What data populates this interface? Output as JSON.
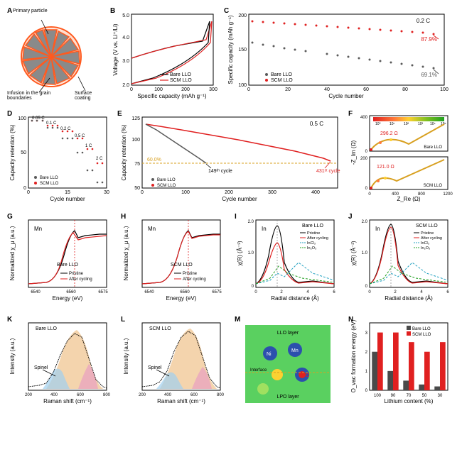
{
  "panels": {
    "A": {
      "label": "A",
      "annotations": [
        "Primary particle",
        "Infusion in the grain boundaries",
        "Surface coating"
      ],
      "colors": {
        "particle": "#8a8a8a",
        "outline": "#ff5a1f",
        "coating": "#ff7a3a"
      }
    },
    "B": {
      "label": "B",
      "type": "line",
      "xlabel": "Specific capacity (mAh g⁻¹)",
      "ylabel": "Voltage (V vs. Li⁺/Li)",
      "xlim": [
        0,
        300
      ],
      "ylim": [
        2.0,
        5.0
      ],
      "xtick_step": 50,
      "ytick_step": 0.5,
      "series": [
        {
          "name": "Bare LLO",
          "color": "#000000",
          "line_width": 1.2
        },
        {
          "name": "SCM LLO",
          "color": "#e02020",
          "line_width": 1.2
        }
      ],
      "background": "#ffffff"
    },
    "C": {
      "label": "C",
      "type": "scatter",
      "xlabel": "Cycle number",
      "ylabel": "Specific capacity (mAh g⁻¹)",
      "xlim": [
        0,
        100
      ],
      "ylim": [
        100,
        200
      ],
      "xtick_step": 20,
      "ytick_step": 25,
      "annotation_rate": "0.2 C",
      "series": [
        {
          "name": "Bare LLO",
          "color": "#5a5a5a",
          "end_label": "69.1%",
          "label_color": "#5a5a5a"
        },
        {
          "name": "SCM LLO",
          "color": "#e02020",
          "end_label": "87.9%",
          "label_color": "#e02020"
        }
      ]
    },
    "D": {
      "label": "D",
      "type": "scatter",
      "xlabel": "Cycle number",
      "ylabel": "Capacity retention (%)",
      "xlim": [
        0,
        30
      ],
      "ylim": [
        0,
        110
      ],
      "rate_labels": [
        "0.05 C",
        "0.1 C",
        "0.2 C",
        "0.5 C",
        "1 C",
        "2 C"
      ],
      "series": [
        {
          "name": "Bare LLO",
          "color": "#5a5a5a"
        },
        {
          "name": "SCM LLO",
          "color": "#e02020"
        }
      ]
    },
    "E": {
      "label": "E",
      "type": "scatter",
      "xlabel": "Cycle number",
      "ylabel": "Capacity retention (%)",
      "xlim": [
        0,
        450
      ],
      "ylim": [
        50,
        125
      ],
      "annotation_rate": "0.5 C",
      "series": [
        {
          "name": "Bare LLO",
          "color": "#5a5a5a",
          "end_cycle": "149ᵗʰ cycle"
        },
        {
          "name": "SCM LLO",
          "color": "#e02020",
          "end_cycle": "431ˢᵗ cycle"
        }
      ],
      "threshold": "60.0%",
      "threshold_color": "#d8a020"
    },
    "F": {
      "label": "F",
      "type": "nyquist",
      "xlabel": "Z_Re (Ω)",
      "ylabel": "-Z_Im (Ω)",
      "xlim": [
        0,
        1200
      ],
      "ylim": [
        0,
        400
      ],
      "subpanels": [
        {
          "name": "Bare LLO",
          "value": "296.2 Ω",
          "value_color": "#e02020"
        },
        {
          "name": "SCM LLO",
          "value": "121.0 Ω",
          "value_color": "#e02020"
        }
      ],
      "gradient": [
        "#e02020",
        "#ff7a3a",
        "#ffd030",
        "#80c020",
        "#20a020"
      ],
      "gradient_labels": [
        "10⁰",
        "10¹",
        "10²",
        "10³",
        "10⁴",
        "10⁵"
      ]
    },
    "G": {
      "label": "G",
      "type": "line",
      "element": "Mn",
      "sample": "Bare LLO",
      "xlabel": "Energy (eV)",
      "ylabel": "Normalized χ_μ (a.u.)",
      "xlim": [
        6535,
        6575
      ],
      "series": [
        {
          "name": "Pristine",
          "color": "#000000"
        },
        {
          "name": "After cycling",
          "color": "#e02020"
        }
      ]
    },
    "H": {
      "label": "H",
      "type": "line",
      "element": "Mn",
      "sample": "SCM LLO",
      "xlabel": "Energy (eV)",
      "ylabel": "Normalized χ_μ (a.u.)",
      "xlim": [
        6535,
        6575
      ],
      "series": [
        {
          "name": "Pristine",
          "color": "#000000"
        },
        {
          "name": "After cycling",
          "color": "#e02020"
        }
      ]
    },
    "I": {
      "label": "I",
      "type": "line",
      "element": "In",
      "sample": "Bare LLO",
      "xlabel": "Radial distance (Å)",
      "ylabel": "χ(R) (Å⁻³)",
      "xlim": [
        0,
        6
      ],
      "ylim": [
        0,
        2.0
      ],
      "series": [
        {
          "name": "Pristine",
          "color": "#000000"
        },
        {
          "name": "After cycling",
          "color": "#e02020"
        },
        {
          "name": "InCl₃",
          "color": "#20a0c0",
          "dash": "4,2"
        },
        {
          "name": "In₂O₃",
          "color": "#20a020",
          "dash": "4,2"
        }
      ]
    },
    "J": {
      "label": "J",
      "type": "line",
      "element": "In",
      "sample": "SCM LLO",
      "xlabel": "Radial distance (Å)",
      "ylabel": "χ(R) (Å⁻³)",
      "xlim": [
        0,
        6
      ],
      "ylim": [
        0,
        2.0
      ],
      "series": [
        {
          "name": "Pristine",
          "color": "#000000"
        },
        {
          "name": "After cycling",
          "color": "#e02020"
        },
        {
          "name": "InCl₃",
          "color": "#20a0c0",
          "dash": "4,2"
        },
        {
          "name": "In₂O₃",
          "color": "#20a020",
          "dash": "4,2"
        }
      ]
    },
    "K": {
      "label": "K",
      "type": "raman",
      "sample": "Bare LLO",
      "xlabel": "Raman shift (cm⁻¹)",
      "ylabel": "Intensity (a.u.)",
      "xlim": [
        200,
        800
      ],
      "annotation": "Spinel",
      "peak_fills": [
        "#f0c28a",
        "#e8a0c0",
        "#a0d0f0",
        "#c0e0a0"
      ]
    },
    "L": {
      "label": "L",
      "type": "raman",
      "sample": "SCM LLO",
      "xlabel": "Raman shift (cm⁻¹)",
      "ylabel": "Intensity (a.u.)",
      "xlim": [
        200,
        800
      ],
      "annotation": "Spinel",
      "peak_fills": [
        "#f0c28a",
        "#e8a0c0",
        "#a0d0f0",
        "#c0e0a0"
      ]
    },
    "M": {
      "label": "M",
      "type": "density-map",
      "labels": [
        "LLO layer",
        "LPO layer",
        "Interface",
        "Li",
        "Ni",
        "Mn",
        "O"
      ],
      "bg_color": "#5ad060",
      "hot_color": "#ffd030",
      "cold_color": "#2030c0",
      "label_colors": {
        "Li": "#e0e040",
        "Ni": "#ffffff",
        "Mn": "#ffffff",
        "O": "#e02020"
      }
    },
    "N": {
      "label": "N",
      "type": "bar",
      "xlabel": "Lithium content (%)",
      "ylabel": "O_vac formation energy (eV)",
      "categories": [
        "100",
        "90",
        "70",
        "50",
        "30"
      ],
      "ylim": [
        0,
        3.5
      ],
      "series": [
        {
          "name": "Bare LLO",
          "color": "#4a4a4a",
          "values": [
            2.0,
            1.0,
            0.5,
            0.3,
            0.2
          ]
        },
        {
          "name": "SCM LLO",
          "color": "#e02020",
          "values": [
            3.0,
            3.0,
            2.5,
            2.0,
            2.5
          ]
        }
      ]
    }
  },
  "common": {
    "border_color": "#000000",
    "grid_color": "#e0e0e0",
    "font_size_label": 8,
    "font_size_tick": 7
  }
}
